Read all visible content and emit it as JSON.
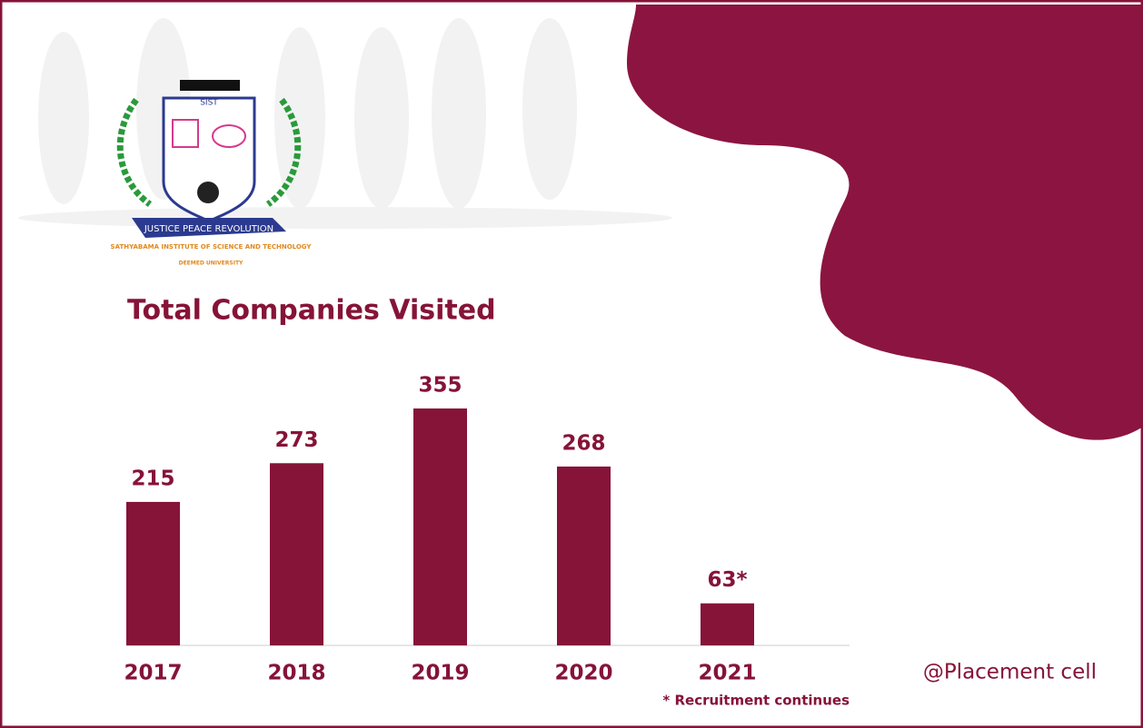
{
  "chart_data": {
    "type": "bar",
    "title": "Total Companies Visited",
    "categories": [
      "2017",
      "2018",
      "2019",
      "2020",
      "2021"
    ],
    "values": [
      215,
      273,
      355,
      268,
      63
    ],
    "value_labels": [
      "215",
      "273",
      "355",
      "268",
      "63*"
    ],
    "color": "#861338",
    "annotations": [
      "* Recruitment continues",
      "@Placement cell"
    ]
  },
  "logo": {
    "abbreviation": "SIST",
    "motto": "JUSTICE PEACE REVOLUTION",
    "name": "SATHYABAMA INSTITUTE OF SCIENCE AND TECHNOLOGY",
    "status": "DEEMED UNIVERSITY"
  }
}
